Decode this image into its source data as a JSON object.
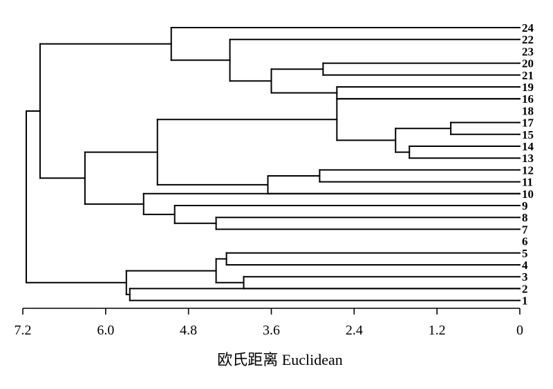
{
  "chart_data": {
    "type": "dendrogram",
    "xlabel": "欧氏距离 Euclidean",
    "xlim": [
      7.2,
      0
    ],
    "x_ticks": [
      "7.2",
      "6.0",
      "4.8",
      "3.6",
      "2.4",
      "1.2",
      "0"
    ],
    "leaves": [
      "24",
      "22",
      "23",
      "20",
      "21",
      "19",
      "16",
      "18",
      "17",
      "15",
      "14",
      "13",
      "12",
      "11",
      "10",
      "9",
      "8",
      "7",
      "6",
      "5",
      "4",
      "3",
      "2",
      "1"
    ],
    "merges": [
      {
        "a": "17",
        "b": "15",
        "height": 1.0
      },
      {
        "a": "14",
        "b": "13",
        "height": 1.6
      },
      {
        "a": "m1",
        "b": "m2",
        "height": 1.8
      },
      {
        "a": "16",
        "b": "m3",
        "height": 2.65
      },
      {
        "a": "12",
        "b": "11",
        "height": 2.9
      },
      {
        "a": "10",
        "b": "m5",
        "height": 3.65
      },
      {
        "a": "m4",
        "b": "m6",
        "height": 5.25
      },
      {
        "a": "20",
        "b": "21",
        "height": 2.85
      },
      {
        "a": "19",
        "b": "16x",
        "height": 2.65
      },
      {
        "a": "m8",
        "b": "m9",
        "height": 3.6
      },
      {
        "a": "22",
        "b": "m10",
        "height": 4.2
      },
      {
        "a": "24",
        "b": "m11",
        "height": 5.05
      },
      {
        "a": "8",
        "b": "7",
        "height": 4.4
      },
      {
        "a": "9",
        "b": "m13",
        "height": 5.0
      },
      {
        "a": "10x",
        "b": "m14",
        "height": 5.45
      },
      {
        "a": "m7",
        "b": "m15",
        "height": 6.3
      },
      {
        "a": "m12",
        "b": "m16",
        "height": 6.95
      },
      {
        "a": "5",
        "b": "4",
        "height": 4.25
      },
      {
        "a": "3",
        "b": "2x",
        "height": 4.0
      },
      {
        "a": "m18",
        "b": "m19",
        "height": 4.4
      },
      {
        "a": "2",
        "b": "1",
        "height": 5.65
      },
      {
        "a": "m20",
        "b": "m21",
        "height": 5.7
      },
      {
        "a": "m17",
        "b": "m22",
        "height": 7.15
      }
    ]
  }
}
